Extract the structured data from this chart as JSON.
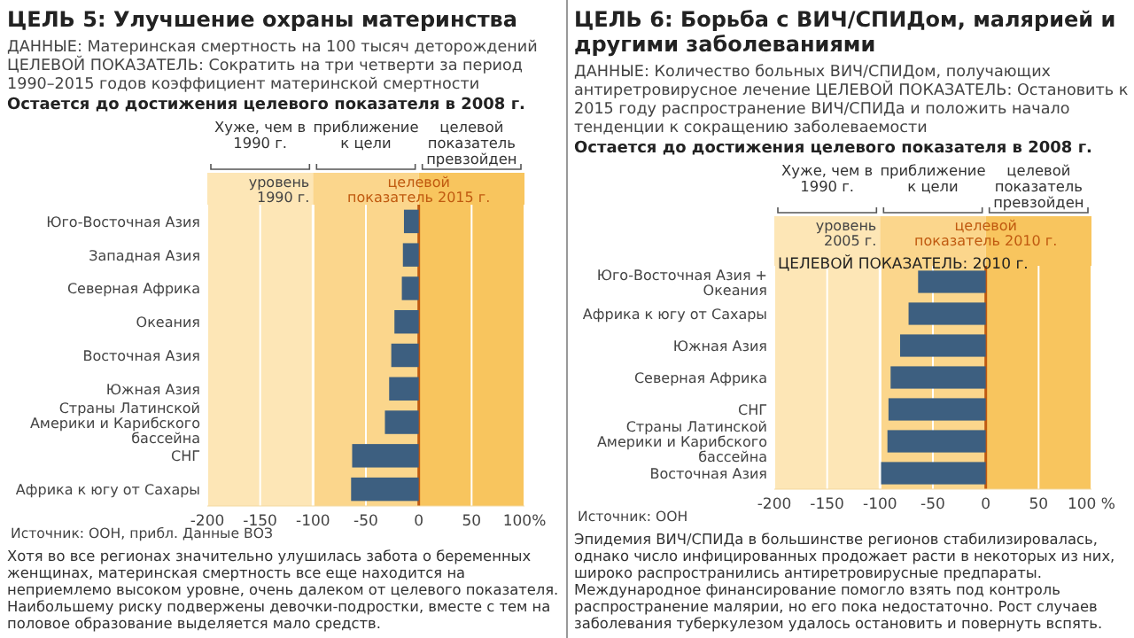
{
  "chart_data": [
    {
      "type": "bar",
      "orientation": "horizontal",
      "title": "ЦЕЛЬ 5: Улучшение охраны материнства",
      "subtitle": "ДАННЫЕ: Материнская смертность на 100 тысяч деторождений ЦЕЛЕВОЙ ПОКАЗАТЕЛЬ: Сократить на три четверти за период 1990–2015 годов коэффициент материнской смертности",
      "categories": [
        "Юго-Восточная Азия",
        "Западная Азия",
        "Северная Африка",
        "Океания",
        "Восточная Азия",
        "Южная Азия",
        "Страны Латинской Америки и Карибского бассейна",
        "СНГ",
        "Африка к югу от Сахары"
      ],
      "values": [
        -14,
        -15,
        -16,
        -23,
        -26,
        -28,
        -32,
        -63,
        -64
      ],
      "color": "#3d5f80",
      "xlim": [
        -200,
        100
      ],
      "xticks": [
        -200,
        -150,
        -100,
        -50,
        0,
        50,
        {
          "value": 100,
          "label": "100%"
        }
      ],
      "grid": "x",
      "bands": [
        {
          "axis": "x",
          "from": -200,
          "to": -100,
          "label": "Хуже, чем в 1990 г.",
          "color": "#fde6b6"
        },
        {
          "axis": "x",
          "from": -100,
          "to": 0,
          "label": "приближение к цели",
          "color": "#fbd68c"
        },
        {
          "axis": "x",
          "from": 0,
          "to": 100,
          "label": "целевой показатель превзойден",
          "color": "#f8c55e"
        }
      ],
      "ref_lines": [
        {
          "axis": "x",
          "value": -100,
          "label": "уровень 1990 г.",
          "color": "#ffffff"
        },
        {
          "axis": "x",
          "value": 0,
          "label": "целевой показатель 2015 г.",
          "color": "#c05a10"
        }
      ],
      "annotations": [
        "Остается до достижения целевого показателя в 2008 г.",
        "Источник: ООН, прибл. Данные ВОЗ",
        "Хотя во все регионах значительно улушилась забота о беременных женщинах, материнская смертность все еще находится на неприемлемо высоком уровне, очень далеком от целевого показателя. Наибольшему риску подвержены девочки-подростки, вместе с тем на половое образование выделяется мало средств."
      ]
    },
    {
      "type": "bar",
      "orientation": "horizontal",
      "title": "ЦЕЛЬ 6: Борьба с ВИЧ/СПИДом, малярией и другими заболеваниями",
      "subtitle": "ДАННЫЕ: Количество больных ВИЧ/СПИДом, получающих антиретровирусное лечение ЦЕЛЕВОЙ ПОКАЗАТЕЛЬ: Остановить к 2015 году распространение ВИЧ/СПИДа и положить начало тенденции к сокращению заболеваемости",
      "categories": [
        "Юго-Восточная Азия + Океания",
        "Африка к югу от Сахары",
        "Южная Азия",
        "Северная Африка",
        "СНГ",
        "Страны Латинской Америки и Карибского бассейна",
        "Восточная Азия"
      ],
      "values": [
        -64,
        -73,
        -81,
        -90,
        -92,
        -93,
        -99
      ],
      "color": "#3d5f80",
      "xlim": [
        -200,
        100
      ],
      "xticks": [
        -200,
        -150,
        -100,
        -50,
        0,
        50,
        {
          "value": 100,
          "label": "100 %"
        }
      ],
      "grid": "x",
      "bands": [
        {
          "axis": "x",
          "from": -200,
          "to": -100,
          "label": "Хуже, чем в 1990 г.",
          "color": "#fde6b6"
        },
        {
          "axis": "x",
          "from": -100,
          "to": 0,
          "label": "приближение к цели",
          "color": "#fbd68c"
        },
        {
          "axis": "x",
          "from": 0,
          "to": 100,
          "label": "целевой показатель превзойден",
          "color": "#f8c55e"
        }
      ],
      "ref_lines": [
        {
          "axis": "x",
          "value": -100,
          "label": "уровень 2005 г.",
          "color": "#ffffff"
        },
        {
          "axis": "x",
          "value": 0,
          "label": "целевой показатель 2010 г.",
          "color": "#c05a10"
        }
      ],
      "annotations": [
        "Остается до достижения целевого показателя в 2008 г.",
        {
          "text": "ЦЕЛЕВОЙ ПОКАЗАТЕЛЬ: 2010 г.",
          "x": -200,
          "y": "Юго-Восточная Азия + Океания"
        },
        "Источник: ООН",
        "Эпидемия ВИЧ/СПИДа в большинстве регионов стабилизировалась, однако число инфицированных продожает расти в некоторых из них, широко распространились антиретровирусные предпараты. Международное финансирование помогло взять под контроль распространение малярии, но его пока недостаточно. Рост случаев заболевания туберкулезом удалось остановить и повернуть вспять."
      ]
    }
  ]
}
